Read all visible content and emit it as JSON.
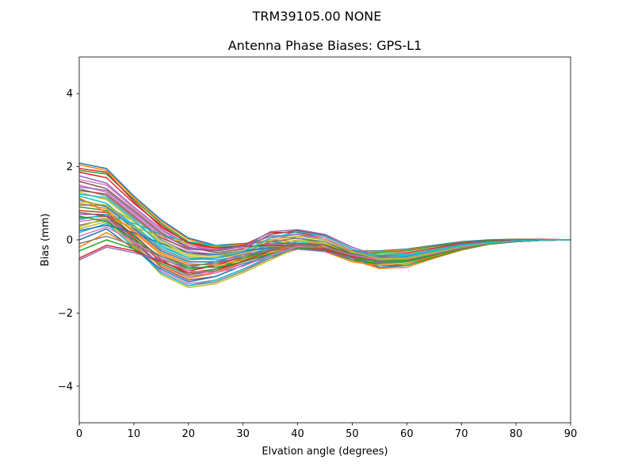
{
  "chart_data": {
    "type": "line",
    "suptitle": "TRM39105.00      NONE",
    "title": "Antenna Phase Biases: GPS-L1",
    "xlabel": "Elvation angle (degrees)",
    "ylabel": "Bias (mm)",
    "xlim": [
      0,
      90
    ],
    "ylim": [
      -5,
      5
    ],
    "xticks": [
      0,
      10,
      20,
      30,
      40,
      50,
      60,
      70,
      80,
      90
    ],
    "yticks": [
      -4,
      -2,
      0,
      2,
      4
    ],
    "ytick_labels": [
      "−4",
      "−2",
      "0",
      "2",
      "4"
    ],
    "grid": false,
    "legend": "none",
    "x": [
      0,
      5,
      10,
      15,
      20,
      25,
      30,
      35,
      40,
      45,
      50,
      55,
      60,
      65,
      70,
      75,
      80,
      85,
      90
    ],
    "colors": [
      "#1f77b4",
      "#ff7f0e",
      "#2ca02c",
      "#d62728",
      "#9467bd",
      "#8c564b",
      "#e377c2",
      "#7f7f7f",
      "#bcbd22",
      "#17becf"
    ],
    "series": [
      {
        "values": [
          2.1,
          1.95,
          1.2,
          0.55,
          0.05,
          -0.15,
          -0.1,
          -0.05,
          -0.1,
          -0.15,
          -0.3,
          -0.3,
          -0.25,
          -0.15,
          -0.05,
          0.0,
          0.02,
          0.02,
          0.0
        ]
      },
      {
        "values": [
          2.05,
          1.9,
          1.15,
          0.5,
          0.02,
          -0.18,
          -0.12,
          0.0,
          -0.05,
          -0.12,
          -0.3,
          -0.32,
          -0.27,
          -0.17,
          -0.07,
          -0.02,
          0.01,
          0.02,
          0.0
        ]
      },
      {
        "values": [
          1.9,
          1.8,
          1.1,
          0.45,
          -0.05,
          -0.2,
          -0.15,
          0.1,
          0.05,
          -0.1,
          -0.35,
          -0.35,
          -0.3,
          -0.18,
          -0.08,
          -0.02,
          0.0,
          0.01,
          0.0
        ]
      },
      {
        "values": [
          1.85,
          1.7,
          1.0,
          0.4,
          -0.1,
          -0.25,
          -0.15,
          0.2,
          0.2,
          0.05,
          -0.3,
          -0.4,
          -0.35,
          -0.22,
          -0.1,
          -0.04,
          -0.01,
          0.01,
          0.0
        ]
      },
      {
        "values": [
          1.75,
          1.55,
          0.9,
          0.3,
          -0.15,
          -0.3,
          -0.2,
          0.22,
          0.28,
          0.15,
          -0.2,
          -0.45,
          -0.4,
          -0.25,
          -0.12,
          -0.05,
          -0.02,
          0.0,
          0.0
        ]
      },
      {
        "values": [
          1.6,
          1.4,
          0.8,
          0.2,
          -0.2,
          -0.35,
          -0.25,
          0.15,
          0.25,
          0.12,
          -0.25,
          -0.5,
          -0.45,
          -0.28,
          -0.15,
          -0.06,
          -0.02,
          0.0,
          0.0
        ]
      },
      {
        "values": [
          1.5,
          1.3,
          0.7,
          0.1,
          -0.3,
          -0.4,
          -0.3,
          0.05,
          0.15,
          0.05,
          -0.3,
          -0.55,
          -0.5,
          -0.32,
          -0.17,
          -0.07,
          -0.03,
          0.0,
          0.0
        ]
      },
      {
        "values": [
          1.4,
          1.2,
          0.6,
          0.0,
          -0.35,
          -0.45,
          -0.35,
          -0.05,
          0.05,
          -0.05,
          -0.35,
          -0.6,
          -0.55,
          -0.36,
          -0.19,
          -0.08,
          -0.03,
          0.0,
          0.0
        ]
      },
      {
        "values": [
          1.3,
          1.1,
          0.5,
          -0.1,
          -0.45,
          -0.5,
          -0.4,
          -0.15,
          0.0,
          -0.1,
          -0.4,
          -0.65,
          -0.6,
          -0.4,
          -0.21,
          -0.09,
          -0.04,
          0.0,
          0.0
        ]
      },
      {
        "values": [
          1.2,
          1.0,
          0.4,
          -0.2,
          -0.5,
          -0.55,
          -0.45,
          -0.2,
          -0.05,
          -0.15,
          -0.45,
          -0.7,
          -0.65,
          -0.43,
          -0.23,
          -0.1,
          -0.04,
          0.0,
          0.0
        ]
      },
      {
        "values": [
          1.1,
          0.9,
          0.3,
          -0.3,
          -0.6,
          -0.6,
          -0.5,
          -0.25,
          -0.1,
          -0.2,
          -0.5,
          -0.75,
          -0.7,
          -0.46,
          -0.25,
          -0.11,
          -0.05,
          -0.01,
          0.0
        ]
      },
      {
        "values": [
          1.0,
          0.85,
          0.2,
          -0.4,
          -0.7,
          -0.65,
          -0.5,
          -0.3,
          -0.15,
          -0.25,
          -0.55,
          -0.78,
          -0.75,
          -0.5,
          -0.28,
          -0.12,
          -0.05,
          -0.01,
          0.0
        ]
      },
      {
        "values": [
          0.9,
          0.8,
          0.1,
          -0.5,
          -0.8,
          -0.7,
          -0.55,
          -0.35,
          -0.2,
          -0.25,
          -0.5,
          -0.7,
          -0.7,
          -0.48,
          -0.27,
          -0.12,
          -0.05,
          -0.01,
          0.0
        ]
      },
      {
        "values": [
          0.8,
          0.75,
          0.05,
          -0.6,
          -0.9,
          -0.8,
          -0.6,
          -0.4,
          -0.2,
          -0.25,
          -0.45,
          -0.6,
          -0.6,
          -0.42,
          -0.24,
          -0.11,
          -0.05,
          -0.01,
          0.0
        ]
      },
      {
        "values": [
          0.7,
          0.7,
          0.0,
          -0.7,
          -1.0,
          -0.9,
          -0.65,
          -0.45,
          -0.25,
          -0.3,
          -0.45,
          -0.55,
          -0.55,
          -0.4,
          -0.23,
          -0.1,
          -0.04,
          -0.01,
          0.0
        ]
      },
      {
        "values": [
          0.6,
          0.65,
          -0.05,
          -0.75,
          -1.1,
          -1.0,
          -0.7,
          -0.45,
          -0.25,
          -0.3,
          -0.45,
          -0.5,
          -0.5,
          -0.37,
          -0.21,
          -0.1,
          -0.04,
          -0.01,
          0.0
        ]
      },
      {
        "values": [
          0.5,
          0.6,
          -0.1,
          -0.85,
          -1.2,
          -1.1,
          -0.8,
          -0.5,
          -0.25,
          -0.3,
          -0.45,
          -0.5,
          -0.45,
          -0.34,
          -0.2,
          -0.09,
          -0.04,
          -0.01,
          0.0
        ]
      },
      {
        "values": [
          0.4,
          0.55,
          -0.1,
          -0.9,
          -1.25,
          -1.15,
          -0.85,
          -0.5,
          -0.22,
          -0.3,
          -0.5,
          -0.55,
          -0.5,
          -0.36,
          -0.21,
          -0.1,
          -0.04,
          -0.01,
          0.0
        ]
      },
      {
        "values": [
          0.3,
          0.5,
          -0.15,
          -0.95,
          -1.3,
          -1.2,
          -0.9,
          -0.55,
          -0.2,
          -0.25,
          -0.45,
          -0.5,
          -0.45,
          -0.33,
          -0.2,
          -0.09,
          -0.04,
          -0.01,
          0.0
        ]
      },
      {
        "values": [
          0.2,
          0.45,
          -0.2,
          -0.9,
          -1.25,
          -1.1,
          -0.8,
          -0.45,
          -0.2,
          -0.28,
          -0.5,
          -0.6,
          -0.55,
          -0.38,
          -0.22,
          -0.1,
          -0.04,
          -0.01,
          0.0
        ]
      },
      {
        "values": [
          0.0,
          0.3,
          -0.25,
          -0.8,
          -1.15,
          -1.0,
          -0.7,
          -0.4,
          -0.2,
          -0.3,
          -0.55,
          -0.65,
          -0.6,
          -0.42,
          -0.24,
          -0.11,
          -0.05,
          -0.01,
          0.0
        ]
      },
      {
        "values": [
          -0.2,
          0.2,
          -0.2,
          -0.7,
          -1.05,
          -0.9,
          -0.6,
          -0.35,
          -0.22,
          -0.32,
          -0.6,
          -0.7,
          -0.65,
          -0.45,
          -0.25,
          -0.11,
          -0.05,
          -0.01,
          0.0
        ]
      },
      {
        "values": [
          -0.3,
          0.0,
          -0.25,
          -0.65,
          -0.95,
          -0.8,
          -0.5,
          -0.3,
          -0.2,
          -0.3,
          -0.55,
          -0.65,
          -0.6,
          -0.42,
          -0.24,
          -0.11,
          -0.05,
          -0.01,
          0.0
        ]
      },
      {
        "values": [
          -0.5,
          -0.15,
          -0.3,
          -0.6,
          -0.85,
          -0.7,
          -0.45,
          -0.25,
          -0.22,
          -0.3,
          -0.5,
          -0.6,
          -0.55,
          -0.4,
          -0.23,
          -0.1,
          -0.04,
          -0.01,
          0.0
        ]
      },
      {
        "values": [
          -0.55,
          -0.2,
          -0.35,
          -0.55,
          -0.75,
          -0.6,
          -0.4,
          -0.28,
          -0.25,
          -0.32,
          -0.5,
          -0.55,
          -0.5,
          -0.37,
          -0.21,
          -0.1,
          -0.04,
          -0.01,
          0.0
        ]
      },
      {
        "values": [
          1.35,
          1.25,
          0.65,
          0.05,
          -0.25,
          -0.3,
          -0.2,
          -0.1,
          -0.1,
          -0.2,
          -0.4,
          -0.45,
          -0.4,
          -0.28,
          -0.15,
          -0.07,
          -0.03,
          0.0,
          0.0
        ]
      },
      {
        "values": [
          1.65,
          1.5,
          0.85,
          0.25,
          -0.15,
          -0.25,
          -0.22,
          -0.12,
          -0.12,
          -0.22,
          -0.42,
          -0.48,
          -0.42,
          -0.3,
          -0.16,
          -0.07,
          -0.03,
          0.0,
          0.0
        ]
      },
      {
        "values": [
          0.95,
          0.95,
          0.35,
          -0.25,
          -0.55,
          -0.5,
          -0.35,
          -0.15,
          -0.1,
          -0.22,
          -0.48,
          -0.62,
          -0.58,
          -0.4,
          -0.22,
          -0.1,
          -0.04,
          -0.01,
          0.0
        ]
      },
      {
        "values": [
          0.35,
          0.6,
          0.35,
          0.1,
          -0.1,
          -0.2,
          -0.2,
          -0.18,
          -0.2,
          -0.25,
          -0.35,
          -0.4,
          -0.38,
          -0.27,
          -0.15,
          -0.07,
          -0.03,
          0.0,
          0.0
        ]
      },
      {
        "values": [
          0.55,
          0.7,
          0.45,
          0.15,
          -0.05,
          -0.15,
          -0.18,
          -0.2,
          -0.22,
          -0.28,
          -0.38,
          -0.42,
          -0.4,
          -0.28,
          -0.15,
          -0.07,
          -0.03,
          0.0,
          0.0
        ]
      },
      {
        "values": [
          0.25,
          0.4,
          0.2,
          -0.1,
          -0.35,
          -0.4,
          -0.3,
          -0.22,
          -0.18,
          -0.24,
          -0.4,
          -0.48,
          -0.45,
          -0.32,
          -0.18,
          -0.08,
          -0.03,
          0.0,
          0.0
        ]
      },
      {
        "values": [
          1.15,
          0.75,
          0.25,
          -0.35,
          -0.65,
          -0.7,
          -0.55,
          -0.3,
          -0.15,
          -0.2,
          -0.42,
          -0.58,
          -0.55,
          -0.38,
          -0.21,
          -0.09,
          -0.04,
          -0.01,
          0.0
        ]
      },
      {
        "values": [
          0.65,
          0.5,
          0.0,
          -0.45,
          -0.75,
          -0.75,
          -0.6,
          -0.38,
          -0.22,
          -0.27,
          -0.47,
          -0.58,
          -0.56,
          -0.4,
          -0.22,
          -0.1,
          -0.04,
          -0.01,
          0.0
        ]
      },
      {
        "values": [
          1.95,
          1.85,
          1.05,
          0.35,
          -0.08,
          -0.22,
          -0.18,
          -0.15,
          -0.18,
          -0.25,
          -0.45,
          -0.55,
          -0.5,
          -0.34,
          -0.18,
          -0.08,
          -0.03,
          0.0,
          0.0
        ]
      },
      {
        "values": [
          1.45,
          1.35,
          0.75,
          0.15,
          -0.22,
          -0.28,
          -0.18,
          0.1,
          0.15,
          0.0,
          -0.3,
          -0.5,
          -0.47,
          -0.31,
          -0.16,
          -0.07,
          -0.03,
          0.0,
          0.0
        ]
      },
      {
        "values": [
          0.75,
          0.65,
          0.15,
          -0.55,
          -0.95,
          -0.85,
          -0.58,
          -0.3,
          -0.1,
          -0.15,
          -0.38,
          -0.52,
          -0.5,
          -0.36,
          -0.2,
          -0.09,
          -0.04,
          -0.01,
          0.0
        ]
      },
      {
        "values": [
          0.1,
          0.35,
          -0.05,
          -0.5,
          -0.85,
          -0.9,
          -0.72,
          -0.42,
          -0.18,
          -0.22,
          -0.42,
          -0.55,
          -0.52,
          -0.37,
          -0.21,
          -0.09,
          -0.04,
          -0.01,
          0.0
        ]
      },
      {
        "values": [
          -0.1,
          0.1,
          -0.15,
          -0.45,
          -0.7,
          -0.65,
          -0.45,
          -0.25,
          -0.15,
          -0.22,
          -0.4,
          -0.5,
          -0.48,
          -0.34,
          -0.19,
          -0.09,
          -0.04,
          -0.01,
          0.0
        ]
      },
      {
        "values": [
          1.05,
          0.95,
          0.5,
          -0.05,
          -0.4,
          -0.45,
          -0.3,
          0.0,
          0.1,
          0.0,
          -0.32,
          -0.52,
          -0.5,
          -0.34,
          -0.18,
          -0.08,
          -0.03,
          0.0,
          0.0
        ]
      },
      {
        "values": [
          1.25,
          1.15,
          0.55,
          -0.15,
          -0.5,
          -0.5,
          -0.32,
          0.05,
          0.22,
          0.1,
          -0.25,
          -0.48,
          -0.46,
          -0.31,
          -0.16,
          -0.07,
          -0.03,
          0.0,
          0.0
        ]
      }
    ]
  }
}
